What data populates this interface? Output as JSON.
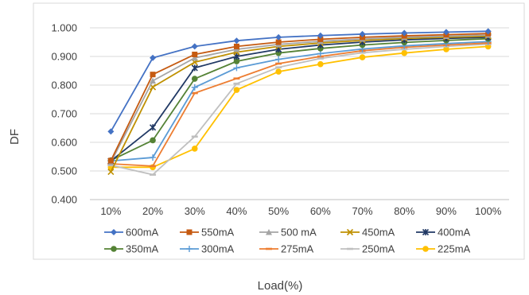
{
  "chart_data": {
    "type": "line",
    "xlabel": "Load(%)",
    "ylabel": "DF",
    "categories": [
      "10%",
      "20%",
      "30%",
      "40%",
      "50%",
      "60%",
      "70%",
      "80%",
      "90%",
      "100%"
    ],
    "ylim": [
      0.4,
      1.0
    ],
    "yticks": [
      "0.400",
      "0.500",
      "0.600",
      "0.700",
      "0.800",
      "0.900",
      "1.000"
    ],
    "grid": true,
    "legend_position": "bottom",
    "series": [
      {
        "name": "600mA",
        "color": "#4472C4",
        "marker": "diamond",
        "values": [
          0.638,
          0.895,
          0.935,
          0.955,
          0.967,
          0.973,
          0.978,
          0.982,
          0.985,
          0.988
        ]
      },
      {
        "name": "550mA",
        "color": "#C55A11",
        "marker": "square",
        "values": [
          0.536,
          0.837,
          0.907,
          0.935,
          0.95,
          0.96,
          0.967,
          0.972,
          0.976,
          0.98
        ]
      },
      {
        "name": "500 mA",
        "color": "#A5A5A5",
        "marker": "triangle",
        "values": [
          0.53,
          0.815,
          0.895,
          0.925,
          0.942,
          0.953,
          0.961,
          0.967,
          0.971,
          0.975
        ]
      },
      {
        "name": "450mA",
        "color": "#BF9000",
        "marker": "x",
        "values": [
          0.497,
          0.793,
          0.88,
          0.915,
          0.935,
          0.947,
          0.956,
          0.963,
          0.967,
          0.971
        ]
      },
      {
        "name": "400mA",
        "color": "#203864",
        "marker": "star",
        "values": [
          0.535,
          0.652,
          0.86,
          0.9,
          0.925,
          0.94,
          0.95,
          0.958,
          0.963,
          0.967
        ]
      },
      {
        "name": "350mA",
        "color": "#548235",
        "marker": "circle",
        "values": [
          0.537,
          0.607,
          0.822,
          0.883,
          0.912,
          0.928,
          0.94,
          0.949,
          0.956,
          0.962
        ]
      },
      {
        "name": "300mA",
        "color": "#5B9BD5",
        "marker": "plus",
        "values": [
          0.535,
          0.547,
          0.792,
          0.86,
          0.89,
          0.91,
          0.926,
          0.937,
          0.945,
          0.952
        ]
      },
      {
        "name": "275mA",
        "color": "#ED7D31",
        "marker": "dash",
        "values": [
          0.525,
          0.517,
          0.772,
          0.823,
          0.875,
          0.9,
          0.92,
          0.932,
          0.94,
          0.947
        ]
      },
      {
        "name": "250mA",
        "color": "#BFBFBF",
        "marker": "dash",
        "values": [
          0.52,
          0.487,
          0.62,
          0.805,
          0.862,
          0.893,
          0.913,
          0.925,
          0.935,
          0.943
        ]
      },
      {
        "name": "225mA",
        "color": "#FFC000",
        "marker": "circle",
        "values": [
          0.513,
          0.513,
          0.578,
          0.783,
          0.847,
          0.873,
          0.897,
          0.912,
          0.925,
          0.935
        ]
      }
    ]
  }
}
